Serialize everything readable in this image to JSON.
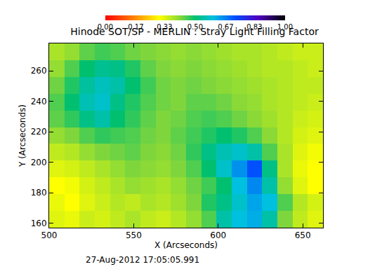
{
  "chart_data": {
    "type": "heatmap",
    "title": "Hinode SOT/SP - MERLIN : Stray Light Filling Factor",
    "x_label": "X (Arcseconds)",
    "y_label": "Y (Arcseconds)",
    "annotations": [
      {
        "text": "27-Aug-2012 17:05:05.991"
      }
    ],
    "xlim": [
      500,
      662
    ],
    "ylim": [
      157,
      278
    ],
    "xticks": [
      500,
      550,
      600,
      650
    ],
    "yticks": [
      160,
      180,
      200,
      220,
      240,
      260
    ],
    "x": [
      504.5,
      513.5,
      522.5,
      531.5,
      540.5,
      549.5,
      558.5,
      567.5,
      576.5,
      585.5,
      594.5,
      603.5,
      612.5,
      621.5,
      630.5,
      639.5,
      648.5,
      657.5
    ],
    "y": [
      162.5,
      173.5,
      184.5,
      195.5,
      206.5,
      217.5,
      228.5,
      239.5,
      250.5,
      261.5,
      272.5
    ],
    "z": [
      [
        0.33,
        0.32,
        0.35,
        0.34,
        0.36,
        0.38,
        0.36,
        0.35,
        0.37,
        0.4,
        0.45,
        0.55,
        0.6,
        0.62,
        0.55,
        0.42,
        0.36,
        0.33
      ],
      [
        0.32,
        0.3,
        0.33,
        0.35,
        0.37,
        0.36,
        0.38,
        0.37,
        0.39,
        0.42,
        0.48,
        0.52,
        0.58,
        0.63,
        0.6,
        0.45,
        0.37,
        0.34
      ],
      [
        0.3,
        0.31,
        0.34,
        0.36,
        0.38,
        0.4,
        0.39,
        0.38,
        0.4,
        0.43,
        0.46,
        0.5,
        0.6,
        0.66,
        0.55,
        0.4,
        0.33,
        0.3
      ],
      [
        0.33,
        0.34,
        0.36,
        0.38,
        0.4,
        0.42,
        0.41,
        0.4,
        0.42,
        0.45,
        0.5,
        0.58,
        0.65,
        0.72,
        0.52,
        0.38,
        0.32,
        0.3
      ],
      [
        0.36,
        0.37,
        0.4,
        0.42,
        0.43,
        0.44,
        0.42,
        0.41,
        0.43,
        0.47,
        0.52,
        0.56,
        0.58,
        0.55,
        0.45,
        0.38,
        0.33,
        0.31
      ],
      [
        0.4,
        0.42,
        0.45,
        0.47,
        0.46,
        0.45,
        0.43,
        0.42,
        0.44,
        0.46,
        0.48,
        0.5,
        0.48,
        0.45,
        0.41,
        0.37,
        0.34,
        0.33
      ],
      [
        0.44,
        0.47,
        0.52,
        0.55,
        0.5,
        0.47,
        0.44,
        0.42,
        0.43,
        0.45,
        0.46,
        0.45,
        0.43,
        0.41,
        0.39,
        0.37,
        0.35,
        0.34
      ],
      [
        0.45,
        0.5,
        0.56,
        0.58,
        0.52,
        0.48,
        0.45,
        0.43,
        0.42,
        0.44,
        0.44,
        0.43,
        0.41,
        0.4,
        0.38,
        0.37,
        0.36,
        0.35
      ],
      [
        0.43,
        0.48,
        0.54,
        0.57,
        0.55,
        0.5,
        0.46,
        0.43,
        0.42,
        0.43,
        0.42,
        0.41,
        0.4,
        0.39,
        0.38,
        0.37,
        0.36,
        0.36
      ],
      [
        0.4,
        0.45,
        0.5,
        0.53,
        0.52,
        0.48,
        0.44,
        0.42,
        0.41,
        0.42,
        0.41,
        0.4,
        0.39,
        0.38,
        0.37,
        0.37,
        0.36,
        0.35
      ],
      [
        0.38,
        0.4,
        0.44,
        0.46,
        0.45,
        0.43,
        0.42,
        0.41,
        0.4,
        0.41,
        0.4,
        0.39,
        0.38,
        0.38,
        0.37,
        0.36,
        0.35,
        0.35
      ]
    ],
    "colorbar": {
      "range": [
        0,
        1
      ],
      "ticks": [
        {
          "value": 0,
          "label": "0.00"
        },
        {
          "value": 0.17,
          "label": "0.17"
        },
        {
          "value": 0.33,
          "label": "0.33"
        },
        {
          "value": 0.5,
          "label": "0.50"
        },
        {
          "value": 0.67,
          "label": "0.67"
        },
        {
          "value": 0.83,
          "label": "0.83"
        },
        {
          "value": 1,
          "label": "1.00"
        }
      ]
    }
  }
}
